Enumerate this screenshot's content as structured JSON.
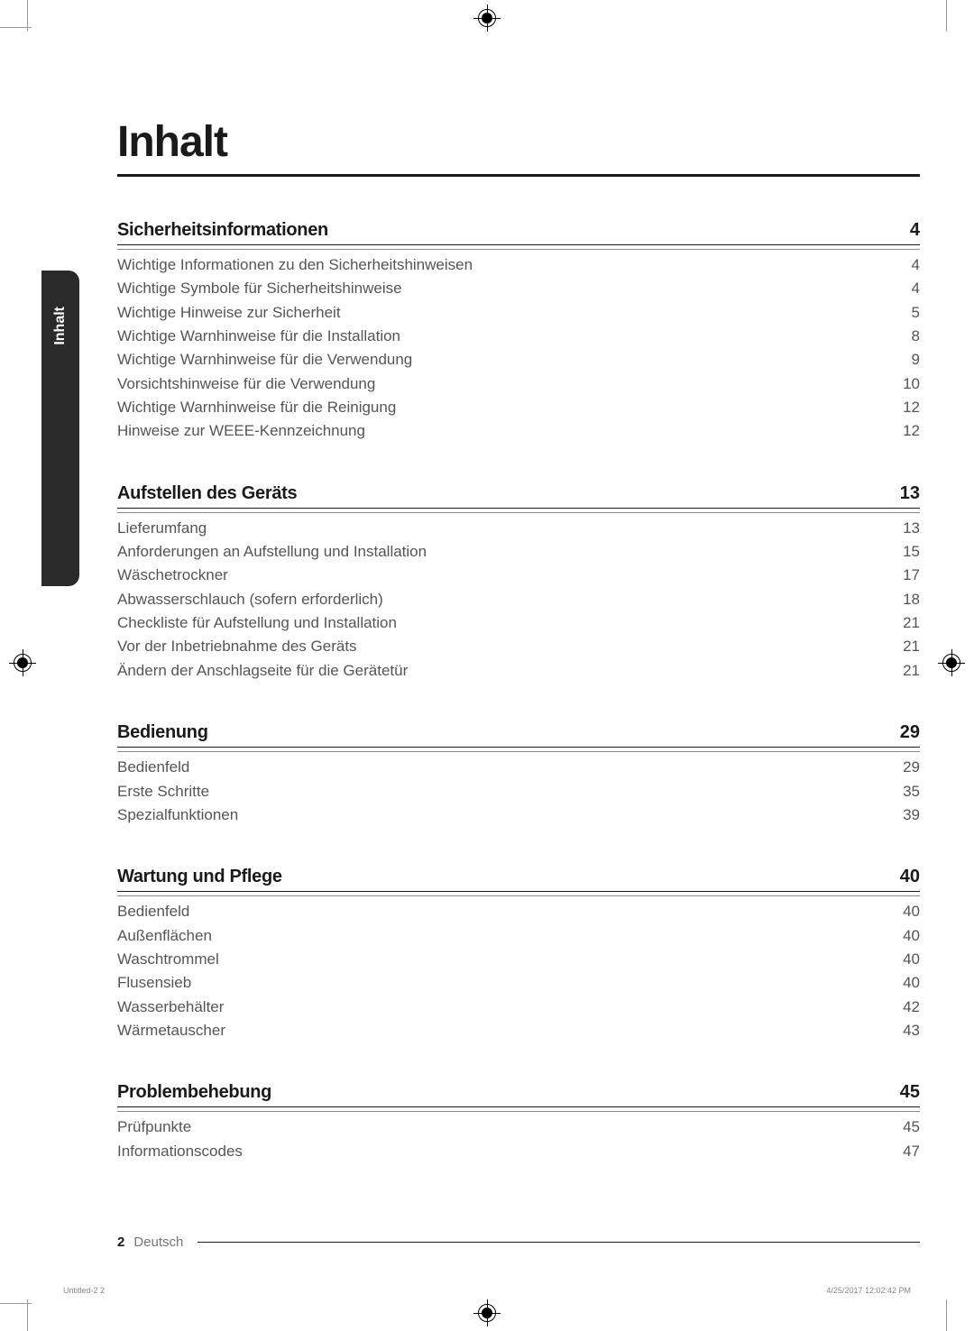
{
  "page_title": "Inhalt",
  "side_tab": "Inhalt",
  "sections": [
    {
      "title": "Sicherheitsinformationen",
      "page": "4",
      "items": [
        {
          "label": "Wichtige Informationen zu den Sicherheitshinweisen",
          "page": "4"
        },
        {
          "label": "Wichtige Symbole für Sicherheitshinweise",
          "page": "4"
        },
        {
          "label": "Wichtige Hinweise zur Sicherheit",
          "page": "5"
        },
        {
          "label": "Wichtige Warnhinweise für die Installation",
          "page": "8"
        },
        {
          "label": "Wichtige Warnhinweise für die Verwendung",
          "page": "9"
        },
        {
          "label": "Vorsichtshinweise für die Verwendung",
          "page": "10"
        },
        {
          "label": "Wichtige Warnhinweise für die Reinigung",
          "page": "12"
        },
        {
          "label": "Hinweise zur WEEE-Kennzeichnung",
          "page": "12"
        }
      ]
    },
    {
      "title": "Aufstellen des Geräts",
      "page": "13",
      "items": [
        {
          "label": "Lieferumfang",
          "page": "13"
        },
        {
          "label": "Anforderungen an Aufstellung und Installation",
          "page": "15"
        },
        {
          "label": "Wäschetrockner",
          "page": "17"
        },
        {
          "label": "Abwasserschlauch (sofern erforderlich)",
          "page": "18"
        },
        {
          "label": "Checkliste für Aufstellung und Installation",
          "page": "21"
        },
        {
          "label": "Vor der Inbetriebnahme des Geräts",
          "page": "21"
        },
        {
          "label": "Ändern der Anschlagseite für die Gerätetür",
          "page": "21"
        }
      ]
    },
    {
      "title": "Bedienung",
      "page": "29",
      "items": [
        {
          "label": "Bedienfeld",
          "page": "29"
        },
        {
          "label": "Erste Schritte",
          "page": "35"
        },
        {
          "label": "Spezialfunktionen",
          "page": "39"
        }
      ]
    },
    {
      "title": "Wartung und Pflege",
      "page": "40",
      "items": [
        {
          "label": "Bedienfeld",
          "page": "40"
        },
        {
          "label": "Außenflächen",
          "page": "40"
        },
        {
          "label": "Waschtrommel",
          "page": "40"
        },
        {
          "label": "Flusensieb",
          "page": "40"
        },
        {
          "label": "Wasserbehälter",
          "page": "42"
        },
        {
          "label": "Wärmetauscher",
          "page": "43"
        }
      ]
    },
    {
      "title": "Problembehebung",
      "page": "45",
      "items": [
        {
          "label": "Prüfpunkte",
          "page": "45"
        },
        {
          "label": "Informationscodes",
          "page": "47"
        }
      ]
    }
  ],
  "footer": {
    "page_number": "2",
    "language": "Deutsch"
  },
  "print_info": {
    "left": "Untitled-2   2",
    "right": "4/25/2017   12:02:42 PM"
  },
  "colors": {
    "text_primary": "#1a1a1a",
    "text_secondary": "#555555",
    "text_muted": "#888888",
    "tab_bg": "#2a2a2a",
    "tab_text": "#ffffff",
    "background": "#ffffff"
  }
}
